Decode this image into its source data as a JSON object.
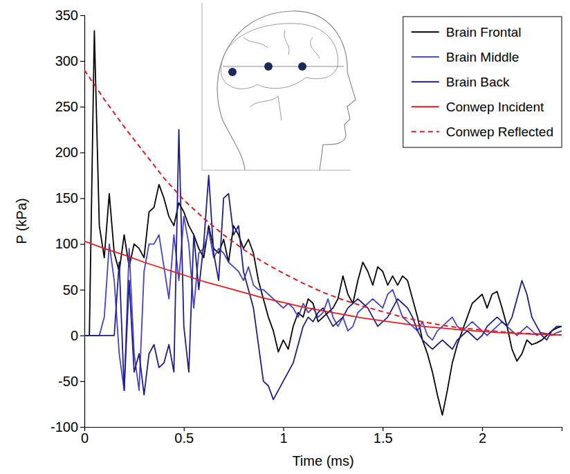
{
  "chart_data": {
    "type": "line",
    "x_label": "Time (ms)",
    "y_label": "P (kPa)",
    "xlim": [
      0,
      2.4
    ],
    "xticks": [
      0,
      0.5,
      1,
      1.5,
      2
    ],
    "ylim": [
      -100,
      350
    ],
    "yticks": [
      -100,
      -50,
      0,
      50,
      100,
      150,
      200,
      250,
      300,
      350
    ],
    "grid": false,
    "legend": "top-right",
    "x": [
      0,
      0.025,
      0.05,
      0.075,
      0.1,
      0.125,
      0.15,
      0.175,
      0.2,
      0.225,
      0.25,
      0.275,
      0.3,
      0.325,
      0.35,
      0.375,
      0.4,
      0.425,
      0.45,
      0.475,
      0.5,
      0.525,
      0.55,
      0.575,
      0.6,
      0.625,
      0.65,
      0.675,
      0.7,
      0.725,
      0.75,
      0.775,
      0.8,
      0.825,
      0.85,
      0.875,
      0.9,
      0.925,
      0.95,
      0.975,
      1,
      1.025,
      1.05,
      1.075,
      1.1,
      1.125,
      1.15,
      1.175,
      1.2,
      1.225,
      1.25,
      1.275,
      1.3,
      1.325,
      1.35,
      1.375,
      1.4,
      1.425,
      1.45,
      1.475,
      1.5,
      1.525,
      1.55,
      1.575,
      1.6,
      1.625,
      1.65,
      1.675,
      1.7,
      1.725,
      1.75,
      1.775,
      1.8,
      1.825,
      1.85,
      1.875,
      1.9,
      1.925,
      1.95,
      1.975,
      2,
      2.025,
      2.05,
      2.075,
      2.1,
      2.125,
      2.15,
      2.175,
      2.2,
      2.225,
      2.25,
      2.275,
      2.3,
      2.325,
      2.35,
      2.375,
      2.4
    ],
    "series": [
      {
        "name": "Brain Frontal",
        "color": "#000000",
        "line_style": "solid",
        "values": [
          0,
          0,
          333,
          120,
          85,
          155,
          90,
          70,
          110,
          75,
          100,
          95,
          85,
          135,
          140,
          165,
          150,
          130,
          120,
          145,
          135,
          120,
          110,
          95,
          85,
          120,
          95,
          90,
          105,
          80,
          120,
          110,
          95,
          105,
          90,
          60,
          40,
          20,
          5,
          -18,
          -5,
          -15,
          10,
          25,
          20,
          40,
          35,
          15,
          20,
          25,
          30,
          40,
          65,
          45,
          35,
          60,
          80,
          70,
          55,
          75,
          70,
          55,
          65,
          55,
          65,
          60,
          40,
          20,
          -5,
          -20,
          -40,
          -65,
          -87,
          -60,
          -30,
          -10,
          5,
          20,
          35,
          40,
          45,
          30,
          45,
          48,
          30,
          10,
          -15,
          -28,
          -20,
          -5,
          -10,
          -8,
          -5,
          0,
          5,
          8,
          10
        ]
      },
      {
        "name": "Brain Middle",
        "color": "#4343c8",
        "line_style": "solid",
        "values": [
          0,
          0,
          0,
          0,
          20,
          100,
          60,
          -20,
          -60,
          95,
          -20,
          -60,
          70,
          100,
          100,
          110,
          75,
          40,
          110,
          60,
          130,
          100,
          30,
          90,
          95,
          115,
          85,
          95,
          90,
          80,
          75,
          70,
          60,
          75,
          55,
          50,
          50,
          45,
          40,
          35,
          30,
          35,
          30,
          20,
          35,
          25,
          30,
          20,
          25,
          40,
          20,
          10,
          20,
          5,
          10,
          25,
          30,
          35,
          40,
          35,
          30,
          45,
          50,
          35,
          20,
          15,
          10,
          5,
          15,
          0,
          -5,
          5,
          10,
          15,
          20,
          10,
          5,
          10,
          15,
          10,
          5,
          0,
          5,
          10,
          15,
          10,
          5,
          0,
          5,
          10,
          5,
          0,
          3,
          2,
          0,
          3,
          5
        ]
      },
      {
        "name": "Brain Back",
        "color": "#1c1c8c",
        "line_style": "solid",
        "values": [
          0,
          0,
          0,
          0,
          0,
          0,
          0,
          80,
          -60,
          60,
          -40,
          -20,
          -65,
          -20,
          -10,
          -35,
          -30,
          -10,
          -40,
          225,
          10,
          -40,
          110,
          50,
          100,
          175,
          90,
          60,
          150,
          155,
          110,
          120,
          70,
          50,
          30,
          -10,
          -50,
          -55,
          -70,
          -60,
          -50,
          -40,
          -30,
          -10,
          10,
          20,
          15,
          25,
          30,
          20,
          10,
          15,
          20,
          30,
          35,
          40,
          35,
          30,
          20,
          10,
          15,
          20,
          30,
          40,
          35,
          30,
          20,
          5,
          -5,
          -10,
          -15,
          -10,
          -5,
          -10,
          -15,
          -5,
          0,
          5,
          0,
          -5,
          0,
          10,
          15,
          20,
          15,
          10,
          20,
          40,
          60,
          45,
          20,
          10,
          0,
          -5,
          5,
          10,
          10
        ]
      },
      {
        "name": "Conwep Incident",
        "color": "#e8191e",
        "line_style": "solid",
        "x": [
          0,
          0.1,
          0.2,
          0.3,
          0.4,
          0.5,
          0.6,
          0.7,
          0.8,
          0.9,
          1,
          1.1,
          1.2,
          1.3,
          1.4,
          1.5,
          1.6,
          1.7,
          1.8,
          1.9,
          2,
          2.1,
          2.2,
          2.3,
          2.4
        ],
        "values": [
          103,
          95,
          88,
          80,
          73,
          66,
          59,
          53,
          47,
          41,
          36,
          31,
          27,
          23,
          19,
          16,
          13,
          10,
          8,
          6,
          4.5,
          3,
          2,
          1,
          0.5
        ]
      },
      {
        "name": "Conwep Reflected",
        "color": "#e8191e",
        "line_style": "dashed",
        "x": [
          0,
          0.1,
          0.2,
          0.3,
          0.4,
          0.5,
          0.6,
          0.7,
          0.8,
          0.9,
          1,
          1.1,
          1.2,
          1.3,
          1.4,
          1.5,
          1.6,
          1.7,
          1.8,
          1.9,
          2,
          2.1,
          2.2,
          2.3,
          2.4
        ],
        "values": [
          290,
          258,
          228,
          200,
          172,
          148,
          128,
          110,
          94,
          80,
          68,
          57,
          47,
          39,
          32,
          26,
          20,
          15,
          11,
          8,
          6,
          4,
          2.5,
          1.5,
          0.5
        ]
      }
    ]
  }
}
